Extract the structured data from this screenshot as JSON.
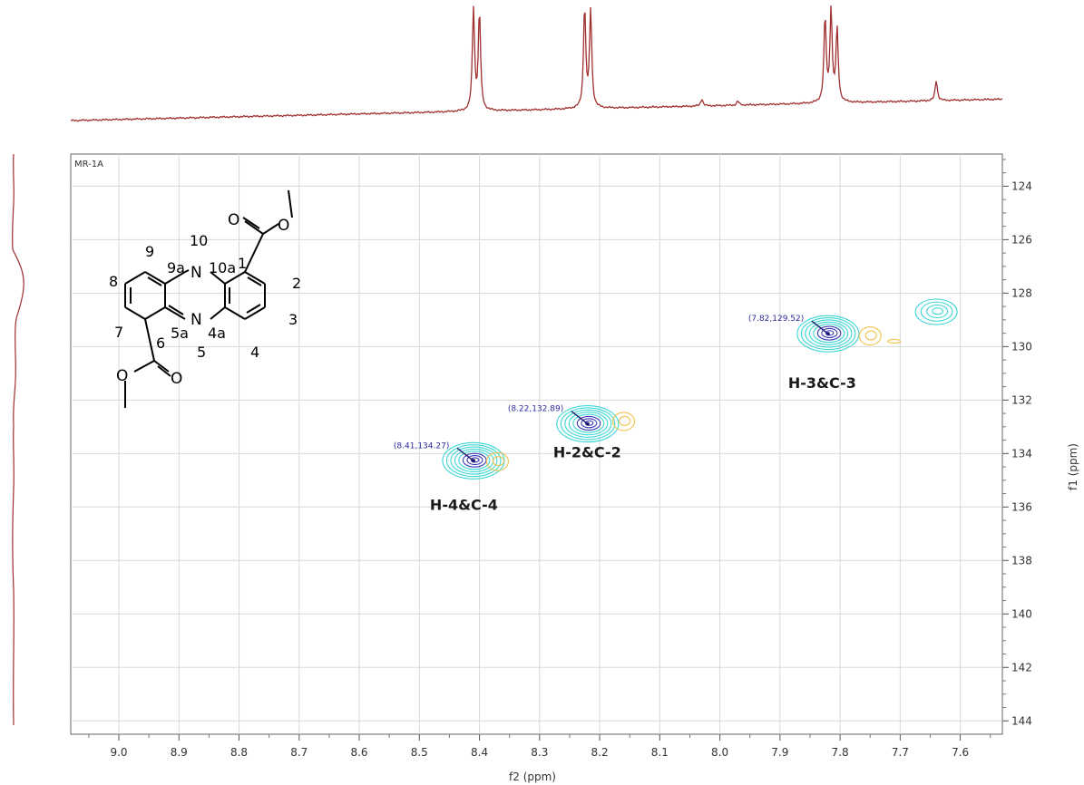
{
  "chart_data": {
    "type": "heatmap",
    "title": "",
    "sample_name": "MR-1A",
    "xlabel": "f2 (ppm)",
    "ylabel": "f1 (ppm)",
    "xlim": [
      9.08,
      7.53
    ],
    "ylim": [
      122.8,
      144.5
    ],
    "x_ticks": [
      "9.0",
      "8.9",
      "8.8",
      "8.7",
      "8.6",
      "8.5",
      "8.4",
      "8.3",
      "8.2",
      "8.1",
      "8.0",
      "7.9",
      "7.8",
      "7.7",
      "7.6"
    ],
    "y_ticks": [
      "124",
      "126",
      "128",
      "130",
      "132",
      "134",
      "136",
      "138",
      "140",
      "142",
      "144"
    ],
    "grid": true,
    "colors": {
      "positive": "#3dd6d6",
      "positive_core": "#3a3ab8",
      "negative": "#f0c24a",
      "projection": "#a03030"
    },
    "peaks": [
      {
        "label": "(8.41,134.27)",
        "x": 8.41,
        "y": 134.27,
        "annotation": "H-4&C-4"
      },
      {
        "label": "(8.22,132.89)",
        "x": 8.22,
        "y": 132.89,
        "annotation": "H-2&C-2"
      },
      {
        "label": "(7.82,129.52)",
        "x": 7.82,
        "y": 129.52,
        "annotation": "H-3&C-3"
      }
    ],
    "extra_contours": [
      {
        "x": 7.64,
        "y": 128.7,
        "sign": "positive"
      },
      {
        "x": 8.37,
        "y": 134.3,
        "sign": "negative"
      },
      {
        "x": 8.16,
        "y": 132.8,
        "sign": "negative"
      },
      {
        "x": 7.75,
        "y": 129.6,
        "sign": "negative"
      },
      {
        "x": 7.71,
        "y": 129.8,
        "sign": "negative"
      }
    ],
    "projection_f2": [
      {
        "ppm": 8.41,
        "height": 1.0
      },
      {
        "ppm": 8.4,
        "height": 0.97
      },
      {
        "ppm": 8.225,
        "height": 1.0
      },
      {
        "ppm": 8.215,
        "height": 0.96
      },
      {
        "ppm": 7.825,
        "height": 0.84
      },
      {
        "ppm": 7.815,
        "height": 0.9
      },
      {
        "ppm": 7.805,
        "height": 0.72
      },
      {
        "ppm": 7.64,
        "height": 0.2
      },
      {
        "ppm": 8.03,
        "height": 0.07
      },
      {
        "ppm": 7.97,
        "height": 0.04
      }
    ]
  },
  "structure": {
    "position_labels": [
      "9",
      "10",
      "9a",
      "10a",
      "1",
      "2",
      "8",
      "7",
      "6",
      "5a",
      "4a",
      "5",
      "3",
      "4"
    ],
    "atoms": [
      "N",
      "N",
      "O",
      "O",
      "O",
      "O"
    ]
  }
}
